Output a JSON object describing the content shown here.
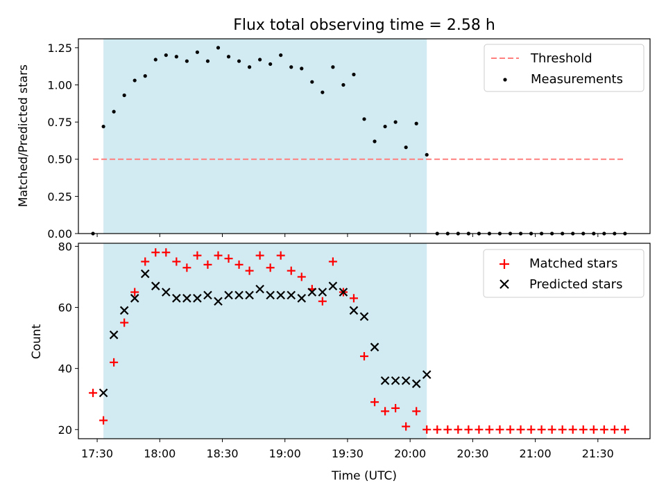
{
  "title": "Flux total observing time = 2.58 h",
  "colors": {
    "band": "#add8e6",
    "threshold": "#ff7f7f",
    "measurements": "#000000",
    "matched": "#ff0000",
    "predicted": "#000000"
  },
  "chart_data": [
    {
      "type": "scatter",
      "ylabel": "Matched/Predicted stars",
      "ylim": [
        0,
        1.31
      ],
      "yticks": [
        "0.00",
        "0.25",
        "0.50",
        "0.75",
        "1.00",
        "1.25"
      ],
      "xlim": [
        "17:21",
        "21:55"
      ],
      "xticks": [
        "17:30",
        "18:00",
        "18:30",
        "19:00",
        "19:30",
        "20:00",
        "20:30",
        "21:00",
        "21:30"
      ],
      "shaded_interval": [
        "17:33",
        "20:08"
      ],
      "legend_position": "upper right",
      "threshold": {
        "name": "Threshold",
        "value": 0.5,
        "x_range": [
          "17:28",
          "21:43"
        ]
      },
      "series": [
        {
          "name": "Measurements",
          "x": [
            "17:28",
            "17:33",
            "17:38",
            "17:43",
            "17:48",
            "17:53",
            "17:58",
            "18:03",
            "18:08",
            "18:13",
            "18:18",
            "18:23",
            "18:28",
            "18:33",
            "18:38",
            "18:43",
            "18:48",
            "18:53",
            "18:58",
            "19:03",
            "19:08",
            "19:13",
            "19:18",
            "19:23",
            "19:28",
            "19:33",
            "19:38",
            "19:43",
            "19:48",
            "19:53",
            "19:58",
            "20:03",
            "20:08",
            "20:13",
            "20:18",
            "20:23",
            "20:28",
            "20:33",
            "20:38",
            "20:43",
            "20:48",
            "20:53",
            "20:58",
            "21:03",
            "21:08",
            "21:13",
            "21:18",
            "21:23",
            "21:28",
            "21:33",
            "21:38",
            "21:43"
          ],
          "y": [
            0.0,
            0.72,
            0.82,
            0.93,
            1.03,
            1.06,
            1.17,
            1.2,
            1.19,
            1.16,
            1.22,
            1.16,
            1.25,
            1.19,
            1.16,
            1.12,
            1.17,
            1.14,
            1.2,
            1.12,
            1.11,
            1.02,
            0.95,
            1.12,
            1.0,
            1.07,
            0.77,
            0.62,
            0.72,
            0.75,
            0.58,
            0.74,
            0.53,
            0.0,
            0.0,
            0.0,
            0.0,
            0.0,
            0.0,
            0.0,
            0.0,
            0.0,
            0.0,
            0.0,
            0.0,
            0.0,
            0.0,
            0.0,
            0.0,
            0.0,
            0.0,
            0.0
          ]
        }
      ]
    },
    {
      "type": "scatter",
      "xlabel": "Time (UTC)",
      "ylabel": "Count",
      "ylim": [
        17,
        81
      ],
      "yticks": [
        "20",
        "40",
        "60",
        "80"
      ],
      "xlim": [
        "17:21",
        "21:55"
      ],
      "xticks": [
        "17:30",
        "18:00",
        "18:30",
        "19:00",
        "19:30",
        "20:00",
        "20:30",
        "21:00",
        "21:30"
      ],
      "shaded_interval": [
        "17:33",
        "20:08"
      ],
      "legend_position": "upper right",
      "series": [
        {
          "name": "Matched stars",
          "marker": "+",
          "x": [
            "17:28",
            "17:33",
            "17:38",
            "17:43",
            "17:48",
            "17:53",
            "17:58",
            "18:03",
            "18:08",
            "18:13",
            "18:18",
            "18:23",
            "18:28",
            "18:33",
            "18:38",
            "18:43",
            "18:48",
            "18:53",
            "18:58",
            "19:03",
            "19:08",
            "19:13",
            "19:18",
            "19:23",
            "19:28",
            "19:33",
            "19:38",
            "19:43",
            "19:48",
            "19:53",
            "19:58",
            "20:03",
            "20:08",
            "20:13",
            "20:18",
            "20:23",
            "20:28",
            "20:33",
            "20:38",
            "20:43",
            "20:48",
            "20:53",
            "20:58",
            "21:03",
            "21:08",
            "21:13",
            "21:18",
            "21:23",
            "21:28",
            "21:33",
            "21:38",
            "21:43"
          ],
          "y": [
            32,
            23,
            42,
            55,
            65,
            75,
            78,
            78,
            75,
            73,
            77,
            74,
            77,
            76,
            74,
            72,
            77,
            73,
            77,
            72,
            70,
            66,
            62,
            75,
            65,
            63,
            44,
            29,
            26,
            27,
            21,
            26,
            20,
            20,
            20,
            20,
            20,
            20,
            20,
            20,
            20,
            20,
            20,
            20,
            20,
            20,
            20,
            20,
            20,
            20,
            20,
            20
          ]
        },
        {
          "name": "Predicted stars",
          "marker": "x",
          "x": [
            "17:33",
            "17:38",
            "17:43",
            "17:48",
            "17:53",
            "17:58",
            "18:03",
            "18:08",
            "18:13",
            "18:18",
            "18:23",
            "18:28",
            "18:33",
            "18:38",
            "18:43",
            "18:48",
            "18:53",
            "18:58",
            "19:03",
            "19:08",
            "19:13",
            "19:18",
            "19:23",
            "19:28",
            "19:33",
            "19:38",
            "19:43",
            "19:48",
            "19:53",
            "19:58",
            "20:03",
            "20:08"
          ],
          "y": [
            32,
            51,
            59,
            63,
            71,
            67,
            65,
            63,
            63,
            63,
            64,
            62,
            64,
            64,
            64,
            66,
            64,
            64,
            64,
            63,
            65,
            65,
            67,
            65,
            59,
            57,
            47,
            36,
            36,
            36,
            35,
            38
          ]
        }
      ]
    }
  ]
}
